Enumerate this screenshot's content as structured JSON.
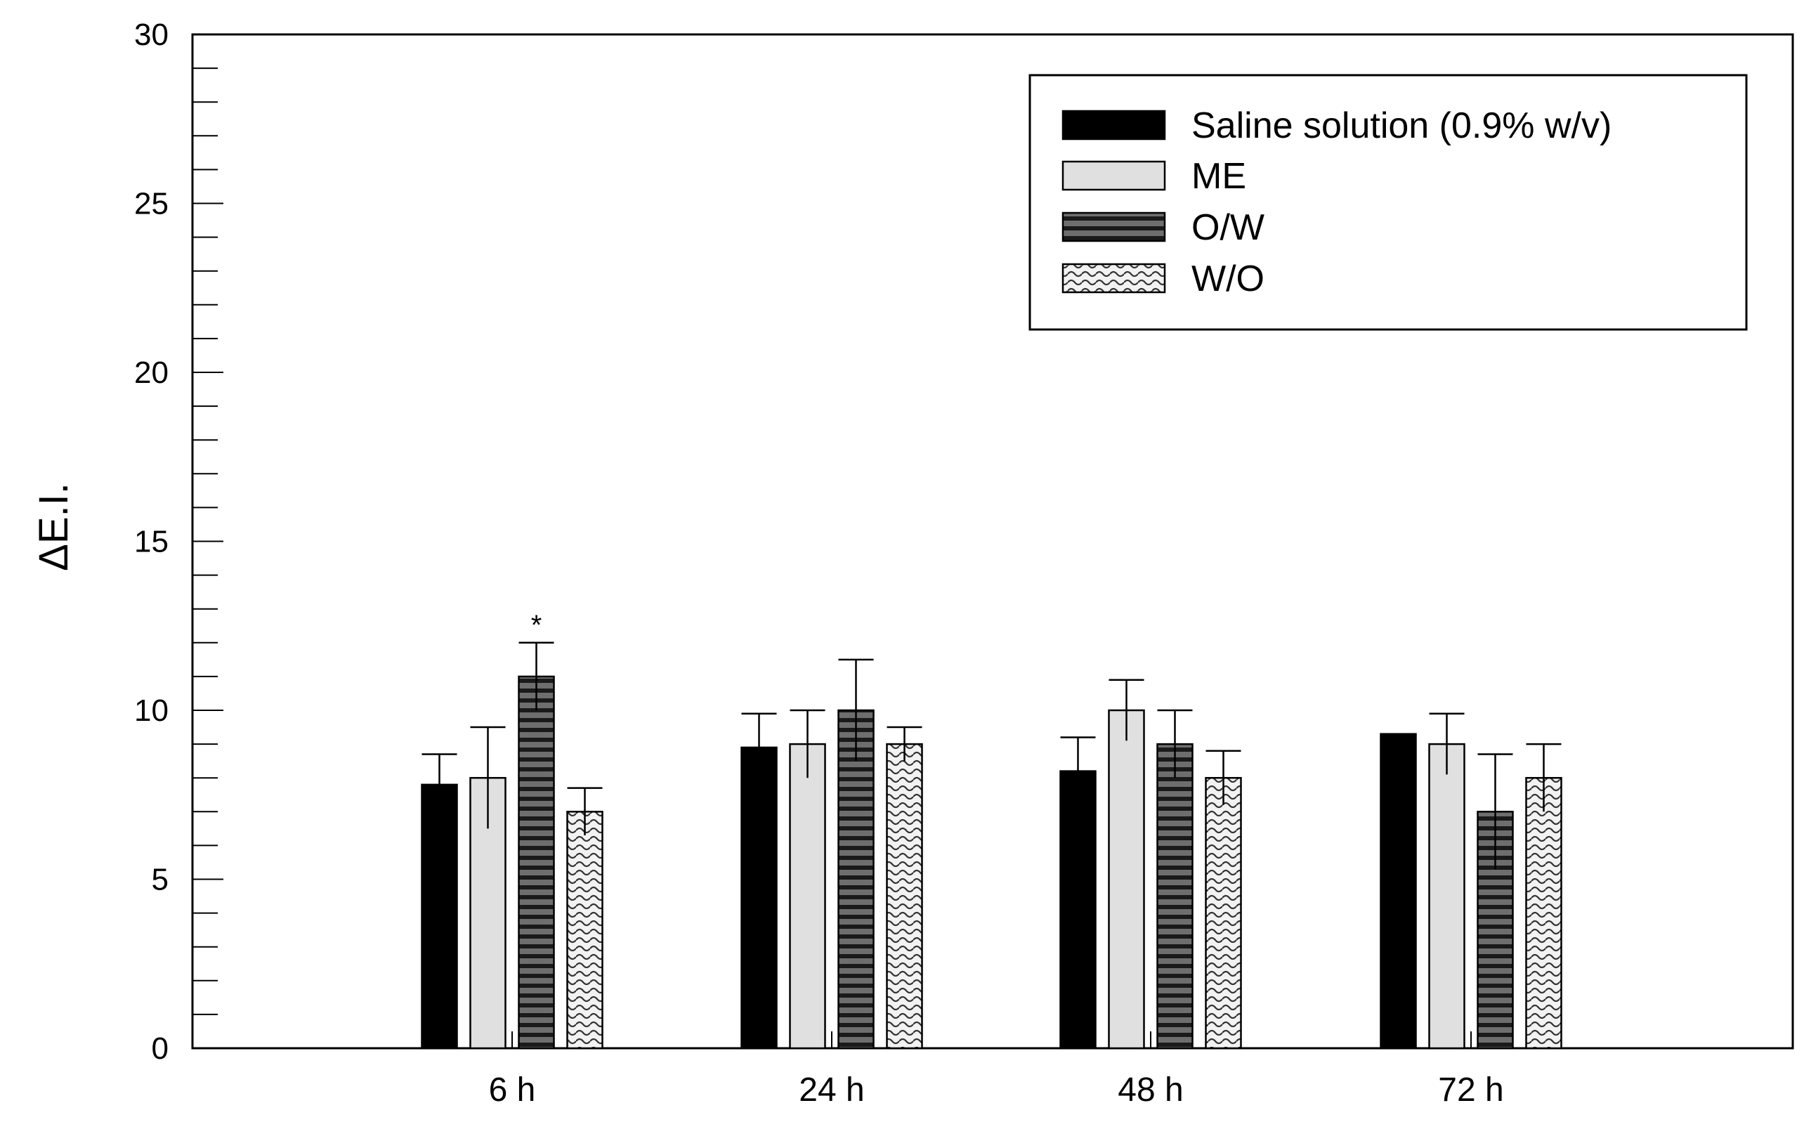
{
  "chart_data": {
    "type": "bar",
    "title": "",
    "xlabel": "",
    "ylabel": "ΔE.I.",
    "ylim": [
      0,
      30
    ],
    "yticks": [
      0,
      5,
      10,
      15,
      20,
      25,
      30
    ],
    "grid": false,
    "legend_position": "top-right",
    "categories": [
      "6 h",
      "24 h",
      "48 h",
      "72 h"
    ],
    "series": [
      {
        "name": "Saline solution (0.9% w/v)",
        "pattern": "solid-black",
        "values": [
          7.8,
          8.9,
          8.2,
          9.3
        ],
        "errors": [
          0.9,
          1.0,
          1.0,
          0.0
        ]
      },
      {
        "name": "ME",
        "pattern": "light-gray",
        "values": [
          8.0,
          9.0,
          10.0,
          9.0
        ],
        "errors": [
          1.5,
          1.0,
          0.9,
          0.9
        ]
      },
      {
        "name": "O/W",
        "pattern": "horizontal-stripes",
        "values": [
          11.0,
          10.0,
          9.0,
          7.0
        ],
        "errors": [
          1.0,
          1.5,
          1.0,
          1.7
        ]
      },
      {
        "name": "W/O",
        "pattern": "wavy",
        "values": [
          7.0,
          9.0,
          8.0,
          8.0
        ],
        "errors": [
          0.7,
          0.5,
          0.8,
          1.0
        ]
      }
    ],
    "annotations": [
      {
        "text": "*",
        "category": "6 h",
        "series": "O/W"
      }
    ]
  },
  "colors": {
    "saline": "#000000",
    "me": "#e0e0e0",
    "ow_fill": "#6e6e6e",
    "ow_stripe": "#1a1a1a",
    "wo_fill": "#f2f2f2",
    "wo_wave": "#333333"
  }
}
